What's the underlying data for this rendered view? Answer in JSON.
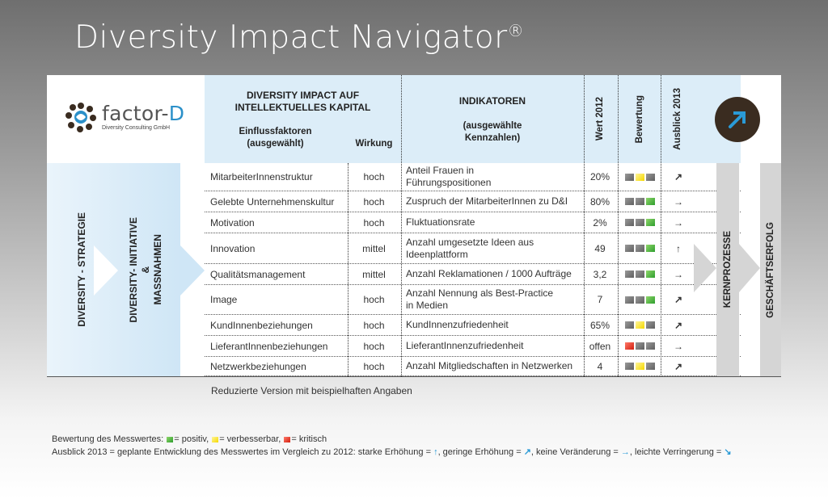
{
  "title": "Diversity Impact Navigator",
  "title_mark": "®",
  "logo": {
    "name_prefix": "factor-",
    "name_suffix": "D",
    "subtitle": "Diversity Consulting GmbH"
  },
  "header": {
    "main_title_line1": "DIVERSITY IMPACT AUF",
    "main_title_line2": "INTELLEKTUELLES KAPITAL",
    "col_factors_line1": "Einflussfaktoren",
    "col_factors_line2": "(ausgewählt)",
    "col_effect": "Wirkung",
    "col_indicators": "INDIKATOREN",
    "col_indicators_sub_line1": "(ausgewählte",
    "col_indicators_sub_line2": "Kennzahlen)",
    "col_value": "Wert 2012",
    "col_rating": "Bewertung",
    "col_outlook": "Ausblick 2013"
  },
  "side_labels": {
    "strategy": "DIVERSITY - STRATEGIE",
    "initiative_line1": "DIVERSITY- INITIATIVE",
    "initiative_line2": "&",
    "initiative_line3": "MASSNAHMEN",
    "core": "KERNPROZESSE",
    "success": "GESCHÄFTSERFOLG"
  },
  "rows": [
    {
      "factor": "MitarbeiterInnenstruktur",
      "effect": "hoch",
      "ind1": "Anteil Frauen in",
      "ind2": "Führungspositionen",
      "value": "20%",
      "rating": [
        "n",
        "y",
        "n"
      ],
      "outlook": "↗"
    },
    {
      "factor": "Gelebte Unternehmenskultur",
      "effect": "hoch",
      "ind1": "Zuspruch der MitarbeiterInnen zu D&I",
      "ind2": "",
      "value": "80%",
      "rating": [
        "n",
        "n",
        "g"
      ],
      "outlook": "→"
    },
    {
      "factor": "Motivation",
      "effect": "hoch",
      "ind1": "Fluktuationsrate",
      "ind2": "",
      "value": "2%",
      "rating": [
        "n",
        "n",
        "g"
      ],
      "outlook": "→"
    },
    {
      "factor": "Innovation",
      "effect": "mittel",
      "ind1": "Anzahl umgesetzte Ideen aus",
      "ind2": "Ideenplattform",
      "value": "49",
      "rating": [
        "n",
        "n",
        "g"
      ],
      "outlook": "↑"
    },
    {
      "factor": "Qualitätsmanagement",
      "effect": "mittel",
      "ind1": "Anzahl Reklamationen / 1000 Aufträge",
      "ind2": "",
      "value": "3,2",
      "rating": [
        "n",
        "n",
        "g"
      ],
      "outlook": "→"
    },
    {
      "factor": "Image",
      "effect": "hoch",
      "ind1": "Anzahl Nennung als Best-Practice",
      "ind2": "in Medien",
      "value": "7",
      "rating": [
        "n",
        "n",
        "g"
      ],
      "outlook": "↗"
    },
    {
      "factor": "KundInnenbeziehungen",
      "effect": "hoch",
      "ind1": "KundInnenzufriedenheit",
      "ind2": "",
      "value": "65%",
      "rating": [
        "n",
        "y",
        "n"
      ],
      "outlook": "↗"
    },
    {
      "factor": "LieferantInnenbeziehungen",
      "effect": "hoch",
      "ind1": "LieferantInnenzufriedenheit",
      "ind2": "",
      "value": "offen",
      "rating": [
        "r",
        "n",
        "n"
      ],
      "outlook": "→"
    },
    {
      "factor": "Netzwerkbeziehungen",
      "effect": "hoch",
      "ind1": "Anzahl Mitgliedschaften in Netzwerken",
      "ind2": "",
      "value": "4",
      "rating": [
        "n",
        "y",
        "n"
      ],
      "outlook": "↗"
    }
  ],
  "note": "Reduzierte Version mit beispielhaften Angaben",
  "legend": {
    "line1_prefix": "Bewertung des Messwertes:",
    "positive": "= positiv,",
    "improvable": "= verbesserbar,",
    "critical": "= kritisch",
    "line2_prefix": "Ausblick 2013 = geplante Entwicklung des Messwertes im Vergleich zu 2012: starke Erhöhung =",
    "strong_arrow": "↑",
    "slight": ", geringe Erhöhung =",
    "slight_arrow": "↗",
    "none": ", keine Veränderung =",
    "none_arrow": "→",
    "decrease": ", leichte Verringerung =",
    "decrease_arrow": "↘"
  },
  "colors": {
    "positive": "#2e9e2e",
    "improvable": "#f5d800",
    "critical": "#d21f0f",
    "neutral": "#6f6f6f",
    "arrow": "#2a9ad6",
    "header_blue": "#dcedf8"
  }
}
